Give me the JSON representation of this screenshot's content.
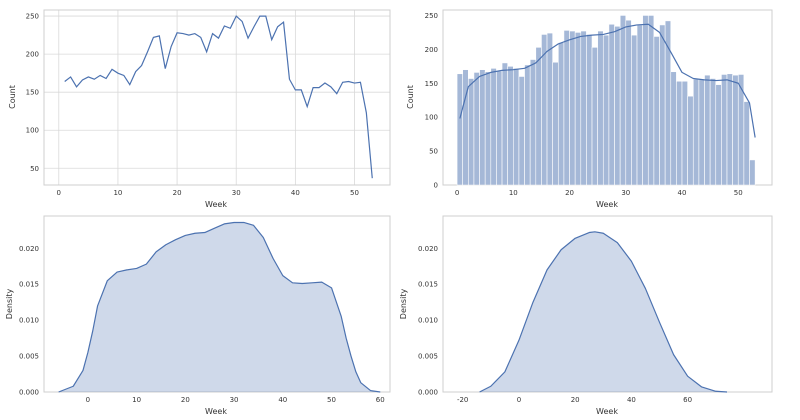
{
  "colors": {
    "series": "#4c72b0",
    "fill": "#4c72b0",
    "grid": "#d9d9d9",
    "frame": "#cfcfcf",
    "text": "#333333"
  },
  "chart_data": [
    {
      "type": "line",
      "xlabel": "Week",
      "ylabel": "Count",
      "xlim": [
        -2.5,
        56
      ],
      "ylim": [
        28,
        258
      ],
      "xticks": [
        0,
        10,
        20,
        30,
        40,
        50
      ],
      "yticks": [
        50,
        100,
        150,
        200,
        250
      ],
      "grid": true,
      "x": [
        1,
        2,
        3,
        4,
        5,
        6,
        7,
        8,
        9,
        10,
        11,
        12,
        13,
        14,
        15,
        16,
        17,
        18,
        19,
        20,
        21,
        22,
        23,
        24,
        25,
        26,
        27,
        28,
        29,
        30,
        31,
        32,
        33,
        34,
        35,
        36,
        37,
        38,
        39,
        40,
        41,
        42,
        43,
        44,
        45,
        46,
        47,
        48,
        49,
        50,
        51,
        52,
        53
      ],
      "y": [
        164,
        170,
        157,
        166,
        170,
        167,
        172,
        168,
        180,
        175,
        172,
        160,
        177,
        185,
        203,
        222,
        224,
        181,
        210,
        228,
        227,
        225,
        227,
        222,
        203,
        227,
        221,
        237,
        234,
        250,
        243,
        221,
        236,
        250,
        250,
        219,
        236,
        242,
        167,
        153,
        153,
        131,
        156,
        156,
        162,
        157,
        148,
        163,
        164,
        162,
        163,
        123,
        37
      ]
    },
    {
      "type": "bar",
      "subtype": "histogram_with_kde",
      "xlabel": "Week",
      "ylabel": "Count",
      "xlim": [
        -2.5,
        56
      ],
      "ylim": [
        0,
        258
      ],
      "xticks": [
        0,
        10,
        20,
        30,
        40,
        50
      ],
      "yticks": [
        0,
        50,
        100,
        150,
        200,
        250
      ],
      "grid": false,
      "bin_width": 1,
      "bin_starts": [
        0,
        1,
        2,
        3,
        4,
        5,
        6,
        7,
        8,
        9,
        10,
        11,
        12,
        13,
        14,
        15,
        16,
        17,
        18,
        19,
        20,
        21,
        22,
        23,
        24,
        25,
        26,
        27,
        28,
        29,
        30,
        31,
        32,
        33,
        34,
        35,
        36,
        37,
        38,
        39,
        40,
        41,
        42,
        43,
        44,
        45,
        46,
        47,
        48,
        49,
        50,
        51,
        52,
        53
      ],
      "values": [
        164,
        170,
        157,
        166,
        170,
        167,
        172,
        168,
        180,
        175,
        172,
        160,
        177,
        185,
        203,
        222,
        224,
        181,
        210,
        228,
        227,
        225,
        227,
        222,
        203,
        227,
        221,
        237,
        234,
        250,
        243,
        221,
        236,
        250,
        250,
        219,
        236,
        242,
        167,
        153,
        153,
        131,
        156,
        156,
        162,
        157,
        148,
        163,
        164,
        162,
        163,
        123,
        37
      ],
      "kde_x": [
        0.5,
        2,
        4,
        6,
        8,
        10,
        12,
        14,
        16,
        18,
        20,
        22,
        24,
        26,
        28,
        30,
        32,
        34,
        36,
        38,
        40,
        42,
        44,
        46,
        48,
        50,
        52,
        53
      ],
      "kde_y": [
        98,
        145,
        160,
        166,
        169,
        170,
        172,
        180,
        197,
        208,
        214,
        219,
        221,
        222,
        226,
        233,
        236,
        237,
        225,
        196,
        166,
        157,
        155,
        154,
        155,
        150,
        121,
        70
      ]
    },
    {
      "type": "area",
      "subtype": "kde",
      "xlabel": "Week",
      "ylabel": "Density",
      "xlim": [
        -9,
        62
      ],
      "ylim": [
        0,
        0.0245
      ],
      "xticks": [
        0,
        10,
        20,
        30,
        40,
        50,
        60
      ],
      "yticks": [
        0.0,
        0.005,
        0.01,
        0.015,
        0.02
      ],
      "ytick_labels": [
        "0.000",
        "0.005",
        "0.010",
        "0.015",
        "0.020"
      ],
      "grid": false,
      "x": [
        -6,
        -3,
        -1,
        0,
        1,
        2,
        4,
        6,
        8,
        10,
        12,
        14,
        16,
        18,
        20,
        22,
        24,
        26,
        28,
        30,
        32,
        34,
        36,
        38,
        40,
        42,
        44,
        46,
        48,
        50,
        52,
        53,
        54,
        55,
        56,
        58,
        60
      ],
      "y": [
        0,
        0.0008,
        0.003,
        0.0055,
        0.0085,
        0.012,
        0.0155,
        0.0167,
        0.017,
        0.0172,
        0.0178,
        0.0195,
        0.0205,
        0.0212,
        0.0218,
        0.0221,
        0.0222,
        0.0228,
        0.0234,
        0.0236,
        0.0236,
        0.0232,
        0.0215,
        0.0186,
        0.0162,
        0.0152,
        0.0151,
        0.0152,
        0.0153,
        0.0145,
        0.0105,
        0.0075,
        0.005,
        0.0028,
        0.0013,
        0.0002,
        0
      ]
    },
    {
      "type": "area",
      "subtype": "kde",
      "xlabel": "Week",
      "ylabel": "Density",
      "xlim": [
        -27,
        90
      ],
      "ylim": [
        0,
        0.0245
      ],
      "xticks": [
        -20,
        0,
        20,
        40,
        60
      ],
      "yticks": [
        0.0,
        0.005,
        0.01,
        0.015,
        0.02
      ],
      "ytick_labels": [
        "0.000",
        "0.005",
        "0.010",
        "0.015",
        "0.020"
      ],
      "grid": false,
      "x": [
        -14,
        -10,
        -5,
        0,
        5,
        10,
        15,
        20,
        25,
        27,
        30,
        35,
        40,
        45,
        50,
        55,
        60,
        65,
        70,
        74
      ],
      "y": [
        0,
        0.0008,
        0.0028,
        0.0072,
        0.0125,
        0.017,
        0.0198,
        0.0214,
        0.0222,
        0.0223,
        0.0221,
        0.0208,
        0.0182,
        0.0144,
        0.0097,
        0.0052,
        0.0022,
        0.0007,
        0.0001,
        0
      ]
    }
  ]
}
